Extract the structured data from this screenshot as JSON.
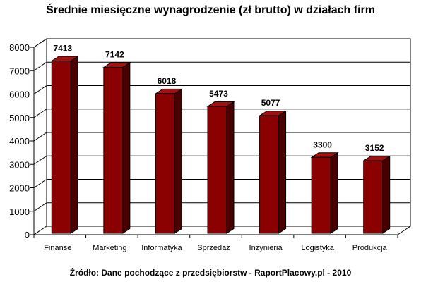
{
  "chart_data": {
    "type": "bar",
    "title": "Średnie miesięczne wynagrodzenie (zł brutto) w działach firm",
    "categories": [
      "Finanse",
      "Marketing",
      "Informatyka",
      "Sprzedaż",
      "Inżynieria",
      "Logistyka",
      "Produkcja"
    ],
    "values": [
      7413,
      7142,
      6018,
      5473,
      5077,
      3300,
      3152
    ],
    "data_labels": [
      "7413",
      "7142",
      "6018",
      "5473",
      "5077",
      "3300",
      "3152"
    ],
    "ylim": [
      0,
      8000
    ],
    "yticks": [
      0,
      1000,
      2000,
      3000,
      4000,
      5000,
      6000,
      7000,
      8000
    ],
    "ytick_labels": [
      "0",
      "1000",
      "2000",
      "3000",
      "4000",
      "5000",
      "6000",
      "7000",
      "8000"
    ],
    "grid": true,
    "legend": "none",
    "bar_color": "#8b0000",
    "bar_side_color": "#4a0000",
    "bar_top_color": "#a31010"
  },
  "source": "Źródło: Dane pochodzące z przedsiębiorstw - RaportPlacowy.pl - 2010"
}
